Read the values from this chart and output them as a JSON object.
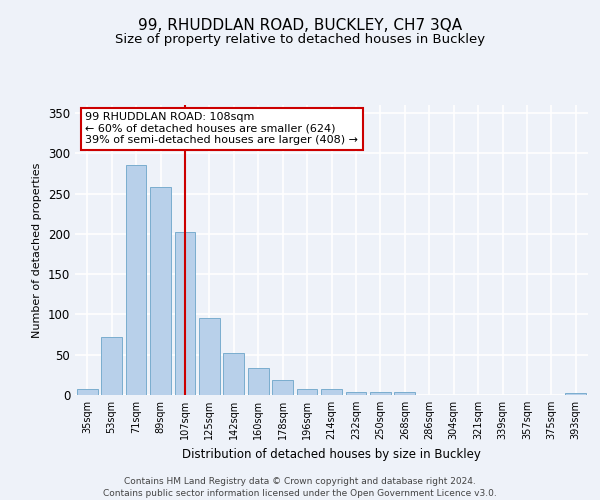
{
  "title": "99, RHUDDLAN ROAD, BUCKLEY, CH7 3QA",
  "subtitle": "Size of property relative to detached houses in Buckley",
  "xlabel": "Distribution of detached houses by size in Buckley",
  "ylabel": "Number of detached properties",
  "categories": [
    "35sqm",
    "53sqm",
    "71sqm",
    "89sqm",
    "107sqm",
    "125sqm",
    "142sqm",
    "160sqm",
    "178sqm",
    "196sqm",
    "214sqm",
    "232sqm",
    "250sqm",
    "268sqm",
    "286sqm",
    "304sqm",
    "321sqm",
    "339sqm",
    "357sqm",
    "375sqm",
    "393sqm"
  ],
  "values": [
    8,
    72,
    285,
    258,
    202,
    96,
    52,
    33,
    19,
    8,
    8,
    4,
    4,
    4,
    0,
    0,
    0,
    0,
    0,
    0,
    3
  ],
  "bar_color": "#b8d0ea",
  "bar_edgecolor": "#7aadce",
  "vline_x": 4,
  "vline_color": "#cc0000",
  "ylim": [
    0,
    360
  ],
  "yticks": [
    0,
    50,
    100,
    150,
    200,
    250,
    300,
    350
  ],
  "annotation_text": "99 RHUDDLAN ROAD: 108sqm\n← 60% of detached houses are smaller (624)\n39% of semi-detached houses are larger (408) →",
  "annotation_box_color": "#ffffff",
  "annotation_box_edgecolor": "#cc0000",
  "footer_line1": "Contains HM Land Registry data © Crown copyright and database right 2024.",
  "footer_line2": "Contains public sector information licensed under the Open Government Licence v3.0.",
  "bg_color": "#eef2f9",
  "grid_color": "#ffffff",
  "title_fontsize": 11,
  "subtitle_fontsize": 9.5,
  "tick_fontsize": 7,
  "ylabel_fontsize": 8,
  "xlabel_fontsize": 8.5
}
